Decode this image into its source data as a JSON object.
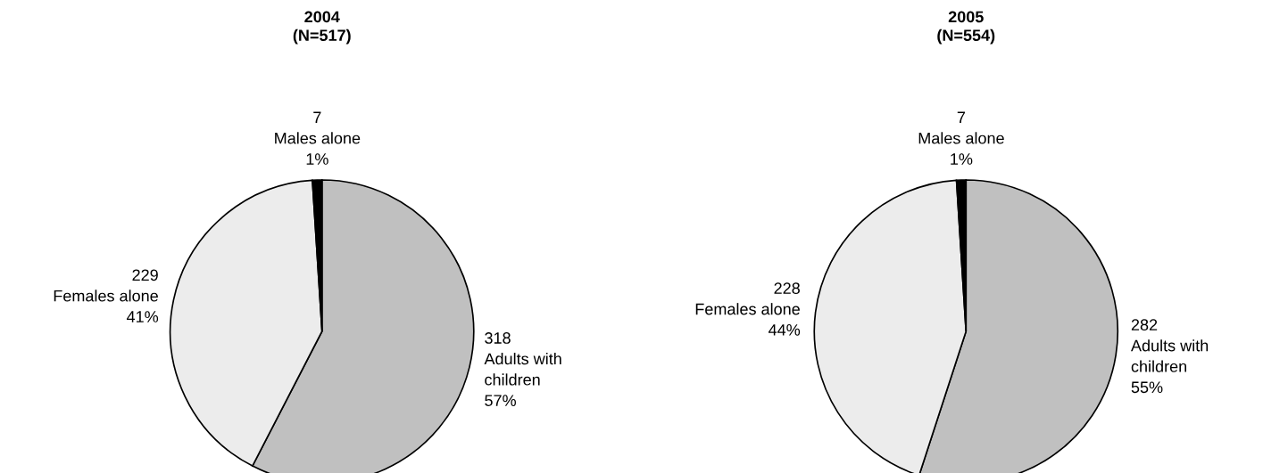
{
  "chart_data": [
    {
      "type": "pie",
      "title": "2004\n(N=517)",
      "categories": [
        "Adults with\nchildren",
        "Females alone",
        "Males alone"
      ],
      "values": [
        57,
        41,
        1
      ],
      "value_labels": [
        "57%",
        "41%",
        "1%"
      ],
      "colors": [
        "#c0c0c0",
        "#ececec",
        "#000000"
      ],
      "annotations": [
        {
          "text": "318",
          "x": "Adults with\nchildren"
        },
        {
          "text": "229",
          "x": "Females alone"
        },
        {
          "text": "7",
          "x": "Males alone"
        }
      ]
    },
    {
      "type": "pie",
      "title": "2005\n(N=554)",
      "categories": [
        "Adults with\nchildren",
        "Females alone",
        "Males alone"
      ],
      "values": [
        55,
        44,
        1
      ],
      "value_labels": [
        "55%",
        "44%",
        "1%"
      ],
      "colors": [
        "#c0c0c0",
        "#ececec",
        "#000000"
      ],
      "annotations": [
        {
          "text": "282",
          "x": "Adults with\nchildren"
        },
        {
          "text": "228",
          "x": "Females alone"
        },
        {
          "text": "7",
          "x": "Males alone"
        }
      ]
    }
  ]
}
